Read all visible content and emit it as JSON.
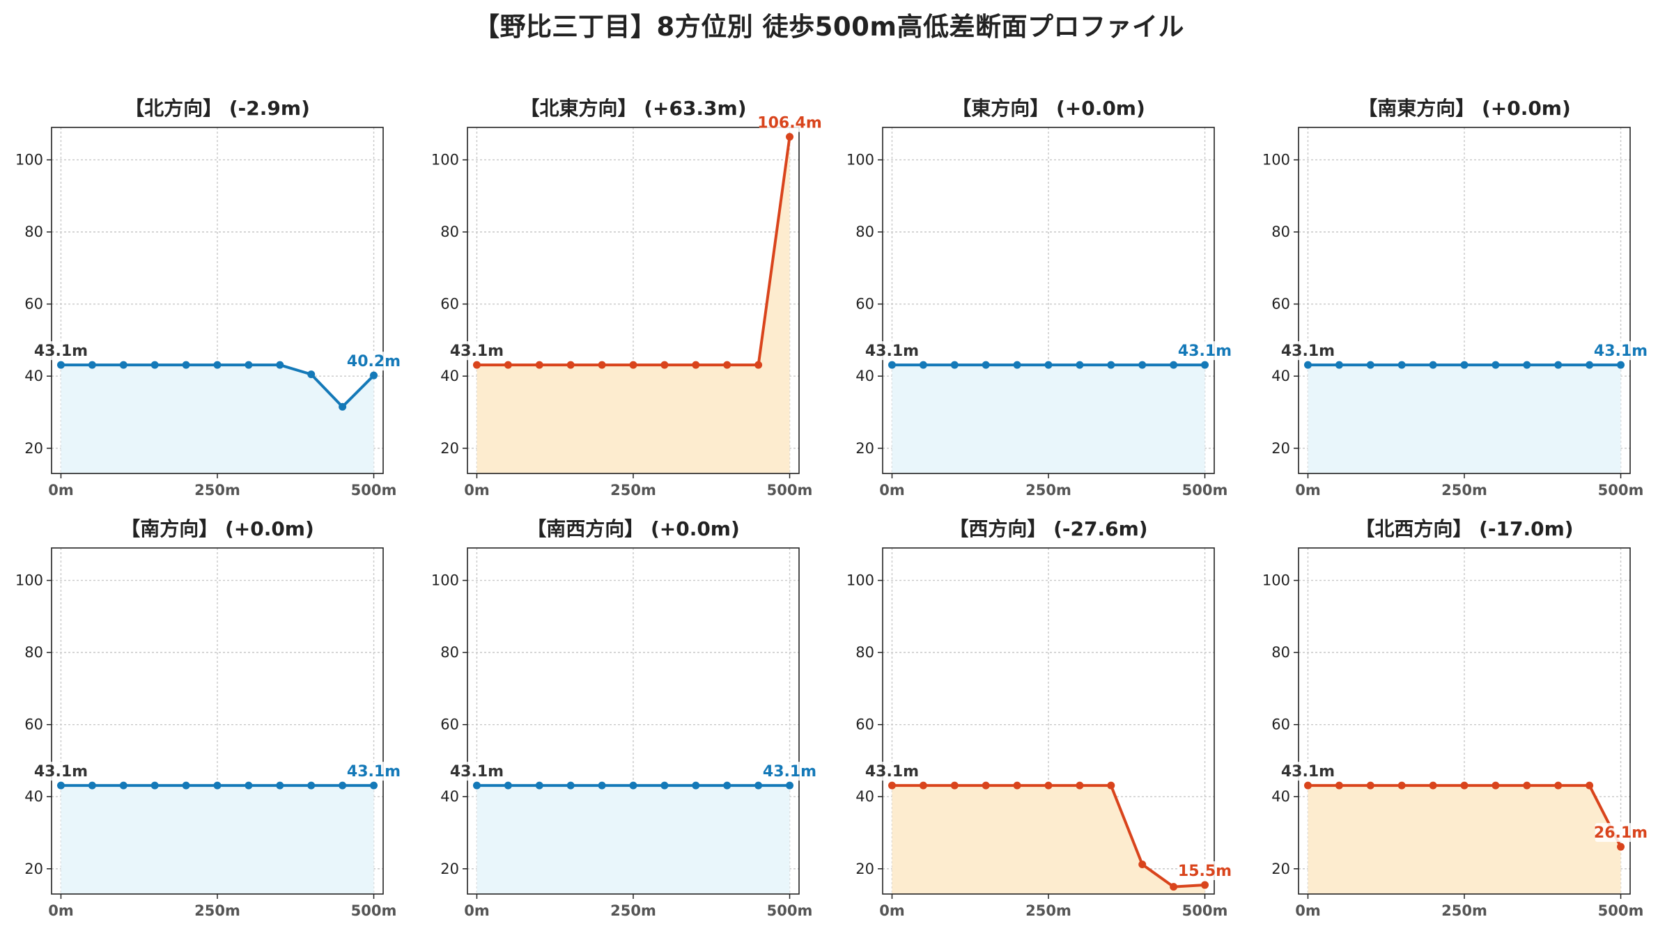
{
  "title": "【野比三丁目】8方位別 徒歩500m高低差断面プロファイル",
  "colors": {
    "up": "#d9441c",
    "down": "#1479b8",
    "fill_up": "#fdeccf",
    "fill_down": "#e9f6fb",
    "start_label": "#333333",
    "grid": "#c8c8c8"
  },
  "chart_data": [
    {
      "type": "line",
      "title": "【北方向】 (-2.9m)",
      "trend": "down",
      "x": [
        0,
        50,
        100,
        150,
        200,
        250,
        300,
        350,
        400,
        450,
        500
      ],
      "values": [
        43.1,
        43.1,
        43.1,
        43.1,
        43.1,
        43.1,
        43.1,
        43.1,
        40.5,
        31.5,
        40.2
      ],
      "xticks": [
        "0m",
        "250m",
        "500m"
      ],
      "yticks": [
        20,
        40,
        60,
        80,
        100
      ],
      "ylim": [
        13,
        109
      ],
      "xlim": [
        -15,
        515
      ],
      "grid": true,
      "start_label": "43.1m",
      "end_label": "40.2m"
    },
    {
      "type": "line",
      "title": "【北東方向】 (+63.3m)",
      "trend": "up",
      "x": [
        0,
        50,
        100,
        150,
        200,
        250,
        300,
        350,
        400,
        450,
        500
      ],
      "values": [
        43.1,
        43.1,
        43.1,
        43.1,
        43.1,
        43.1,
        43.1,
        43.1,
        43.1,
        43.1,
        106.4
      ],
      "xticks": [
        "0m",
        "250m",
        "500m"
      ],
      "yticks": [
        20,
        40,
        60,
        80,
        100
      ],
      "ylim": [
        13,
        109
      ],
      "xlim": [
        -15,
        515
      ],
      "grid": true,
      "start_label": "43.1m",
      "end_label": "106.4m"
    },
    {
      "type": "line",
      "title": "【東方向】 (+0.0m)",
      "trend": "down",
      "x": [
        0,
        50,
        100,
        150,
        200,
        250,
        300,
        350,
        400,
        450,
        500
      ],
      "values": [
        43.1,
        43.1,
        43.1,
        43.1,
        43.1,
        43.1,
        43.1,
        43.1,
        43.1,
        43.1,
        43.1
      ],
      "xticks": [
        "0m",
        "250m",
        "500m"
      ],
      "yticks": [
        20,
        40,
        60,
        80,
        100
      ],
      "ylim": [
        13,
        109
      ],
      "xlim": [
        -15,
        515
      ],
      "grid": true,
      "start_label": "43.1m",
      "end_label": "43.1m"
    },
    {
      "type": "line",
      "title": "【南東方向】 (+0.0m)",
      "trend": "down",
      "x": [
        0,
        50,
        100,
        150,
        200,
        250,
        300,
        350,
        400,
        450,
        500
      ],
      "values": [
        43.1,
        43.1,
        43.1,
        43.1,
        43.1,
        43.1,
        43.1,
        43.1,
        43.1,
        43.1,
        43.1
      ],
      "xticks": [
        "0m",
        "250m",
        "500m"
      ],
      "yticks": [
        20,
        40,
        60,
        80,
        100
      ],
      "ylim": [
        13,
        109
      ],
      "xlim": [
        -15,
        515
      ],
      "grid": true,
      "start_label": "43.1m",
      "end_label": "43.1m"
    },
    {
      "type": "line",
      "title": "【南方向】 (+0.0m)",
      "trend": "down",
      "x": [
        0,
        50,
        100,
        150,
        200,
        250,
        300,
        350,
        400,
        450,
        500
      ],
      "values": [
        43.1,
        43.1,
        43.1,
        43.1,
        43.1,
        43.1,
        43.1,
        43.1,
        43.1,
        43.1,
        43.1
      ],
      "xticks": [
        "0m",
        "250m",
        "500m"
      ],
      "yticks": [
        20,
        40,
        60,
        80,
        100
      ],
      "ylim": [
        13,
        109
      ],
      "xlim": [
        -15,
        515
      ],
      "grid": true,
      "start_label": "43.1m",
      "end_label": "43.1m"
    },
    {
      "type": "line",
      "title": "【南西方向】 (+0.0m)",
      "trend": "down",
      "x": [
        0,
        50,
        100,
        150,
        200,
        250,
        300,
        350,
        400,
        450,
        500
      ],
      "values": [
        43.1,
        43.1,
        43.1,
        43.1,
        43.1,
        43.1,
        43.1,
        43.1,
        43.1,
        43.1,
        43.1
      ],
      "xticks": [
        "0m",
        "250m",
        "500m"
      ],
      "yticks": [
        20,
        40,
        60,
        80,
        100
      ],
      "ylim": [
        13,
        109
      ],
      "xlim": [
        -15,
        515
      ],
      "grid": true,
      "start_label": "43.1m",
      "end_label": "43.1m"
    },
    {
      "type": "line",
      "title": "【西方向】 (-27.6m)",
      "trend": "up",
      "x": [
        0,
        50,
        100,
        150,
        200,
        250,
        300,
        350,
        400,
        450,
        500
      ],
      "values": [
        43.1,
        43.1,
        43.1,
        43.1,
        43.1,
        43.1,
        43.1,
        43.1,
        21.2,
        15.0,
        15.5
      ],
      "xticks": [
        "0m",
        "250m",
        "500m"
      ],
      "yticks": [
        20,
        40,
        60,
        80,
        100
      ],
      "ylim": [
        13,
        109
      ],
      "xlim": [
        -15,
        515
      ],
      "grid": true,
      "start_label": "43.1m",
      "end_label": "15.5m"
    },
    {
      "type": "line",
      "title": "【北西方向】 (-17.0m)",
      "trend": "up",
      "x": [
        0,
        50,
        100,
        150,
        200,
        250,
        300,
        350,
        400,
        450,
        500
      ],
      "values": [
        43.1,
        43.1,
        43.1,
        43.1,
        43.1,
        43.1,
        43.1,
        43.1,
        43.1,
        43.1,
        26.1
      ],
      "xticks": [
        "0m",
        "250m",
        "500m"
      ],
      "yticks": [
        20,
        40,
        60,
        80,
        100
      ],
      "ylim": [
        13,
        109
      ],
      "xlim": [
        -15,
        515
      ],
      "grid": true,
      "start_label": "43.1m",
      "end_label": "26.1m"
    }
  ]
}
